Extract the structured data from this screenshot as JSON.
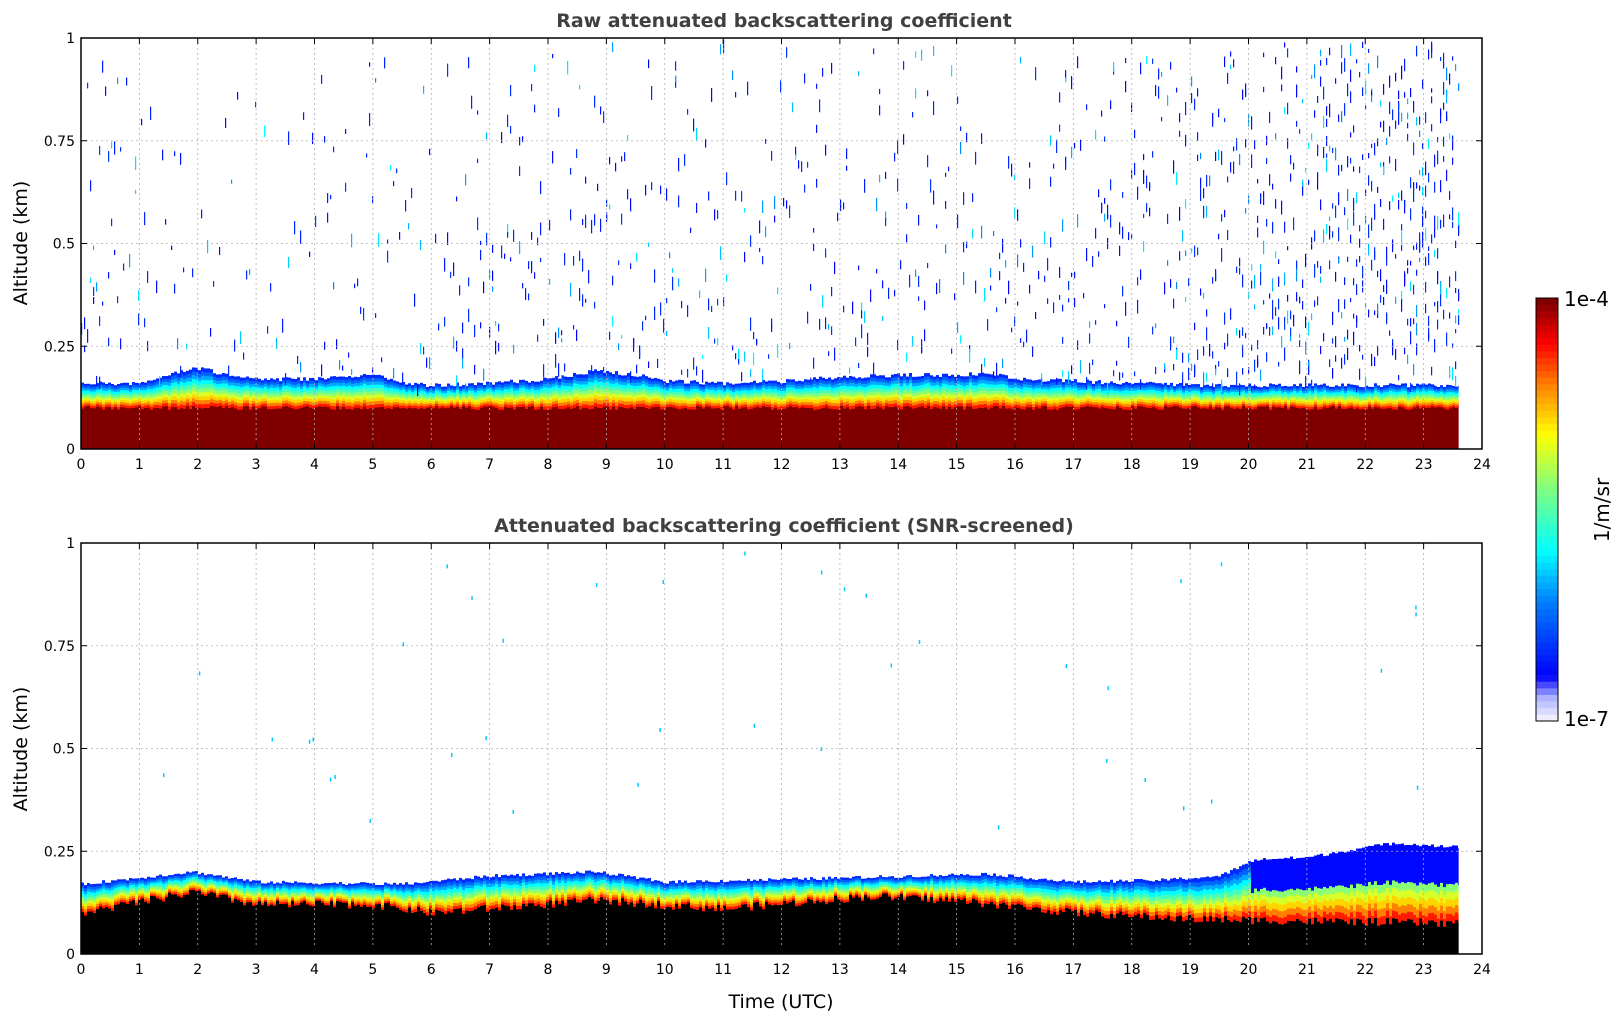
{
  "chart_data": [
    {
      "type": "heatmap",
      "title": "Raw attenuated backscattering coefficient",
      "ylabel": "Altitude (km)",
      "xlabel": "",
      "xlim": [
        0,
        24
      ],
      "ylim": [
        0,
        1
      ],
      "x_ticks": [
        "0",
        "1",
        "2",
        "3",
        "4",
        "5",
        "6",
        "7",
        "8",
        "9",
        "10",
        "11",
        "12",
        "13",
        "14",
        "15",
        "16",
        "17",
        "18",
        "19",
        "20",
        "21",
        "22",
        "23",
        "24"
      ],
      "y_ticks": [
        "0",
        "0.25",
        "0.5",
        "0.75",
        "1"
      ],
      "grid": true,
      "data_end_hour": 23.6,
      "layer_top_km": [
        [
          0,
          0.16
        ],
        [
          1,
          0.16
        ],
        [
          1.5,
          0.18
        ],
        [
          1.9,
          0.2
        ],
        [
          2.5,
          0.18
        ],
        [
          3,
          0.17
        ],
        [
          4,
          0.17
        ],
        [
          5,
          0.18
        ],
        [
          5.5,
          0.16
        ],
        [
          6,
          0.155
        ],
        [
          7,
          0.16
        ],
        [
          8,
          0.17
        ],
        [
          8.8,
          0.19
        ],
        [
          9.5,
          0.18
        ],
        [
          10,
          0.165
        ],
        [
          11,
          0.16
        ],
        [
          12,
          0.165
        ],
        [
          13,
          0.175
        ],
        [
          14,
          0.18
        ],
        [
          15,
          0.18
        ],
        [
          15.5,
          0.185
        ],
        [
          16,
          0.17
        ],
        [
          17,
          0.165
        ],
        [
          18,
          0.16
        ],
        [
          19,
          0.155
        ],
        [
          20,
          0.155
        ],
        [
          21,
          0.155
        ],
        [
          22,
          0.155
        ],
        [
          23,
          0.155
        ],
        [
          23.6,
          0.155
        ]
      ],
      "saturated_top_km": 0.1,
      "noise_level_by_hour": [
        [
          0,
          0.4
        ],
        [
          2,
          0.15
        ],
        [
          4,
          0.2
        ],
        [
          6,
          0.3
        ],
        [
          9,
          0.4
        ],
        [
          12,
          0.35
        ],
        [
          15,
          0.35
        ],
        [
          18,
          0.5
        ],
        [
          20,
          0.7
        ],
        [
          22,
          0.9
        ],
        [
          23.6,
          1.0
        ]
      ],
      "colorscale": "jet",
      "color_range": [
        "1e-7",
        "1e-4"
      ]
    },
    {
      "type": "heatmap",
      "title": "Attenuated backscattering coefficient (SNR-screened)",
      "ylabel": "Altitude (km)",
      "xlabel": "Time (UTC)",
      "xlim": [
        0,
        24
      ],
      "ylim": [
        0,
        1
      ],
      "x_ticks": [
        "0",
        "1",
        "2",
        "3",
        "4",
        "5",
        "6",
        "7",
        "8",
        "9",
        "10",
        "11",
        "12",
        "13",
        "14",
        "15",
        "16",
        "17",
        "18",
        "19",
        "20",
        "21",
        "22",
        "23",
        "24"
      ],
      "y_ticks": [
        "0",
        "0.25",
        "0.5",
        "0.75",
        "1"
      ],
      "grid": true,
      "data_end_hour": 23.6,
      "screened_fill_color": "#000000",
      "blue_layer_top_km": [
        [
          0,
          0.17
        ],
        [
          1.9,
          0.2
        ],
        [
          3,
          0.175
        ],
        [
          5.5,
          0.17
        ],
        [
          7,
          0.19
        ],
        [
          8.8,
          0.2
        ],
        [
          10,
          0.175
        ],
        [
          13,
          0.185
        ],
        [
          15.5,
          0.195
        ],
        [
          17,
          0.175
        ],
        [
          18.5,
          0.18
        ],
        [
          19.5,
          0.19
        ],
        [
          20.1,
          0.23
        ],
        [
          21,
          0.235
        ],
        [
          22,
          0.26
        ],
        [
          22.5,
          0.27
        ],
        [
          23.6,
          0.26
        ]
      ],
      "black_top_km": [
        [
          0,
          0.1
        ],
        [
          1.9,
          0.15
        ],
        [
          3,
          0.12
        ],
        [
          5,
          0.12
        ],
        [
          6,
          0.1
        ],
        [
          8.8,
          0.13
        ],
        [
          11,
          0.11
        ],
        [
          13.5,
          0.14
        ],
        [
          15,
          0.13
        ],
        [
          17,
          0.1
        ],
        [
          19,
          0.085
        ],
        [
          21,
          0.08
        ],
        [
          23.6,
          0.075
        ]
      ]
    }
  ],
  "colorbar": {
    "top_label": "1e-4",
    "bottom_label": "1e-7",
    "unit_label": "1/m/sr"
  },
  "colors": {
    "saturated": "#800000",
    "background": "#ffffff",
    "title": "#404040"
  }
}
